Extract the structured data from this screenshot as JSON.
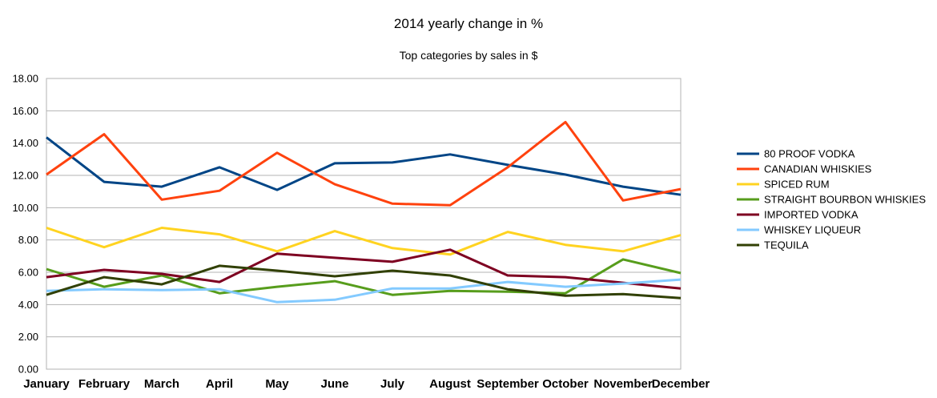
{
  "chart_data": {
    "type": "line",
    "title": "2014 yearly change in %",
    "subtitle": "Top categories by sales in $",
    "xlabel": "",
    "ylabel": "",
    "ylim": [
      0,
      18
    ],
    "yticks": [
      "0.00",
      "2.00",
      "4.00",
      "6.00",
      "8.00",
      "10.00",
      "12.00",
      "14.00",
      "16.00",
      "18.00"
    ],
    "grid": true,
    "legend_position": "right",
    "categories": [
      "January",
      "February",
      "March",
      "April",
      "May",
      "June",
      "July",
      "August",
      "September",
      "October",
      "November",
      "December"
    ],
    "series": [
      {
        "name": "80 PROOF VODKA",
        "color": "#004586",
        "values": [
          14.35,
          11.6,
          11.3,
          12.5,
          11.1,
          12.75,
          12.8,
          13.3,
          12.65,
          12.05,
          11.3,
          10.8
        ]
      },
      {
        "name": "CANADIAN WHISKIES",
        "color": "#ff420e",
        "values": [
          12.05,
          14.55,
          10.5,
          11.05,
          13.4,
          11.45,
          10.25,
          10.15,
          12.5,
          15.3,
          10.45,
          11.15
        ]
      },
      {
        "name": "SPICED RUM",
        "color": "#ffd320",
        "values": [
          8.75,
          7.55,
          8.75,
          8.35,
          7.3,
          8.55,
          7.5,
          7.1,
          8.5,
          7.7,
          7.3,
          8.3
        ]
      },
      {
        "name": "STRAIGHT BOURBON WHISKIES",
        "color": "#579d1c",
        "values": [
          6.2,
          5.1,
          5.8,
          4.7,
          5.1,
          5.45,
          4.6,
          4.85,
          4.8,
          4.7,
          6.8,
          5.95
        ]
      },
      {
        "name": "IMPORTED VODKA",
        "color": "#7e0021",
        "values": [
          5.7,
          6.15,
          5.9,
          5.4,
          7.15,
          6.9,
          6.65,
          7.4,
          5.8,
          5.7,
          5.35,
          5.0
        ]
      },
      {
        "name": "WHISKEY LIQUEUR",
        "color": "#83caff",
        "values": [
          4.85,
          4.95,
          4.9,
          4.95,
          4.15,
          4.3,
          5.0,
          5.0,
          5.4,
          5.1,
          5.3,
          5.55
        ]
      },
      {
        "name": "TEQUILA",
        "color": "#314004",
        "values": [
          4.6,
          5.7,
          5.25,
          6.4,
          6.1,
          5.75,
          6.1,
          5.8,
          4.95,
          4.55,
          4.65,
          4.4
        ]
      }
    ]
  }
}
